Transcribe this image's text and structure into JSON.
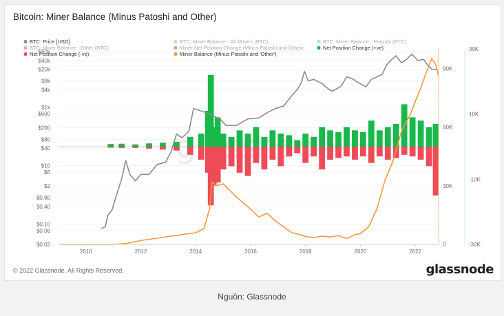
{
  "title": "Bitcoin: Miner Balance (Minus Patoshi and Other)",
  "footer": "© 2022 Glassnode. All Rights Reserved.",
  "brand": "glassnode",
  "watermark": "glassnode",
  "caption": "Nguồn: Glassnode",
  "colors": {
    "price": "#8c8c8c",
    "balance": "#f39a3c",
    "positive": "#18b84a",
    "negative": "#ee4b57",
    "right_axis_line": "#f7c18b"
  },
  "chart_data": {
    "type": "line",
    "legend": [
      {
        "label": "BTC: Price [USD]",
        "color": "#8c8c8c",
        "active": true
      },
      {
        "label": "BTC: Miner Balance - All Miners (BTC)",
        "color": "#f39a3c",
        "active": false
      },
      {
        "label": "BTC: Miner Balance - Patoshi (BTC)",
        "color": "#4fc3d3",
        "active": false
      },
      {
        "label": "BTC: Miner Balance - Other (BTC)",
        "color": "#ee4b57",
        "active": false
      },
      {
        "label": "Miner Net Position Change (Minus Patoshi and Other)",
        "color": "#666666",
        "active": false
      },
      {
        "label": "Net Position Change (+ve)",
        "color": "#18b84a",
        "active": true
      },
      {
        "label": "Net Position Change (-ve)",
        "color": "#ee4b57",
        "active": true
      },
      {
        "label": "Miner Balance (Minus Patoshi and 'Other')",
        "color": "#f39a3c",
        "active": true
      }
    ],
    "x_ticks": [
      "2010",
      "2012",
      "2014",
      "2016",
      "2018",
      "2020",
      "2022"
    ],
    "x_range": [
      2009.0,
      2022.85
    ],
    "y_left": {
      "scale": "log",
      "range": [
        0.02,
        100000
      ],
      "ticks": [
        "$80k",
        "$40k",
        "$20k",
        "$8k",
        "$4k",
        "$1k",
        "$600",
        "$200",
        "$80",
        "$40",
        "$10",
        "$6",
        "$2",
        "$0.80",
        "$0.40",
        "$0.10",
        "$0.06",
        "$0.02"
      ]
    },
    "y_mid": {
      "range": [
        0,
        100000
      ],
      "ticks": [
        "90K",
        "60K",
        "30K",
        "0"
      ]
    },
    "y_right": {
      "range": [
        -30000,
        30000
      ],
      "ticks": [
        "30K",
        "10K",
        "-10K",
        "-30K"
      ]
    },
    "series": [
      {
        "name": "BTC: Price [USD]",
        "axis": "left",
        "x": [
          2010.55,
          2010.7,
          2010.8,
          2010.95,
          2011.1,
          2011.3,
          2011.45,
          2011.6,
          2011.8,
          2012.0,
          2012.3,
          2012.6,
          2012.9,
          2013.1,
          2013.3,
          2013.5,
          2013.75,
          2013.92,
          2014.1,
          2014.5,
          2014.9,
          2015.1,
          2015.5,
          2015.9,
          2016.3,
          2016.6,
          2016.9,
          2017.2,
          2017.5,
          2017.7,
          2017.85,
          2017.96,
          2018.1,
          2018.3,
          2018.6,
          2018.9,
          2019.0,
          2019.3,
          2019.5,
          2019.7,
          2019.9,
          2020.2,
          2020.4,
          2020.6,
          2020.8,
          2020.95,
          2021.1,
          2021.3,
          2021.5,
          2021.7,
          2021.87,
          2022.1,
          2022.3,
          2022.45,
          2022.6,
          2022.8
        ],
        "values": [
          0.07,
          0.08,
          0.2,
          0.3,
          0.9,
          3.5,
          15,
          5,
          3,
          5,
          5,
          11,
          13,
          30,
          120,
          90,
          150,
          900,
          800,
          600,
          380,
          240,
          240,
          400,
          430,
          650,
          900,
          1100,
          2500,
          4000,
          7000,
          17000,
          8000,
          9000,
          6500,
          3800,
          3600,
          5300,
          11000,
          9500,
          7200,
          5000,
          9000,
          11000,
          13500,
          28000,
          40000,
          58000,
          33000,
          45000,
          66000,
          40000,
          44000,
          28000,
          20000,
          19500
        ]
      },
      {
        "name": "Miner Balance (Minus Patoshi and 'Other')",
        "axis": "mid",
        "x": [
          2009.0,
          2011.0,
          2011.5,
          2012.0,
          2012.5,
          2013.0,
          2013.5,
          2014.0,
          2014.3,
          2014.5,
          2014.6,
          2014.75,
          2015.0,
          2015.5,
          2016.0,
          2016.3,
          2016.6,
          2016.9,
          2017.2,
          2017.5,
          2017.8,
          2018.0,
          2018.3,
          2018.6,
          2018.9,
          2019.2,
          2019.5,
          2019.8,
          2020.0,
          2020.3,
          2020.6,
          2020.9,
          2021.2,
          2021.5,
          2021.8,
          2022.0,
          2022.2,
          2022.4,
          2022.6,
          2022.75,
          2022.85
        ],
        "values": [
          0,
          0,
          500,
          2000,
          3000,
          4000,
          5000,
          6000,
          8000,
          18000,
          32000,
          30000,
          31000,
          24000,
          18000,
          14000,
          16000,
          12000,
          9000,
          6000,
          5000,
          4000,
          3500,
          4200,
          3800,
          4500,
          3000,
          5000,
          5500,
          9000,
          18000,
          33000,
          43000,
          58000,
          66000,
          73000,
          80000,
          88000,
          95000,
          92000,
          86000
        ]
      }
    ],
    "net_position_change": {
      "axis": "right",
      "x": [
        2010.9,
        2011.3,
        2011.8,
        2012.3,
        2012.8,
        2013.3,
        2013.8,
        2014.2,
        2014.45,
        2014.55,
        2014.65,
        2014.8,
        2015.0,
        2015.3,
        2015.6,
        2015.9,
        2016.2,
        2016.5,
        2016.8,
        2017.1,
        2017.4,
        2017.7,
        2018.0,
        2018.3,
        2018.6,
        2018.9,
        2019.2,
        2019.5,
        2019.8,
        2020.1,
        2020.4,
        2020.7,
        2021.0,
        2021.3,
        2021.6,
        2021.9,
        2022.2,
        2022.5,
        2022.75
      ],
      "positive": [
        800,
        900,
        700,
        1000,
        1200,
        1500,
        3000,
        4000,
        11000,
        22000,
        6000,
        9000,
        4000,
        3000,
        5000,
        4000,
        6000,
        3000,
        5000,
        4000,
        3500,
        2000,
        4000,
        3000,
        6000,
        5000,
        4500,
        6000,
        5000,
        4500,
        8000,
        5000,
        6000,
        7000,
        13000,
        9000,
        8000,
        6000,
        7000
      ],
      "negative": [
        -300,
        -400,
        -400,
        -600,
        -900,
        -1200,
        -2500,
        -4000,
        -8000,
        -18000,
        -12000,
        -11000,
        -7000,
        -6000,
        -8000,
        -9000,
        -5000,
        -7000,
        -4000,
        -6000,
        -3000,
        -2000,
        -5000,
        -3000,
        -7000,
        -4000,
        -3500,
        -3000,
        -4000,
        -3000,
        -5000,
        -3000,
        -4000,
        -3500,
        -2500,
        -3000,
        -4000,
        -6000,
        -15000
      ]
    }
  }
}
